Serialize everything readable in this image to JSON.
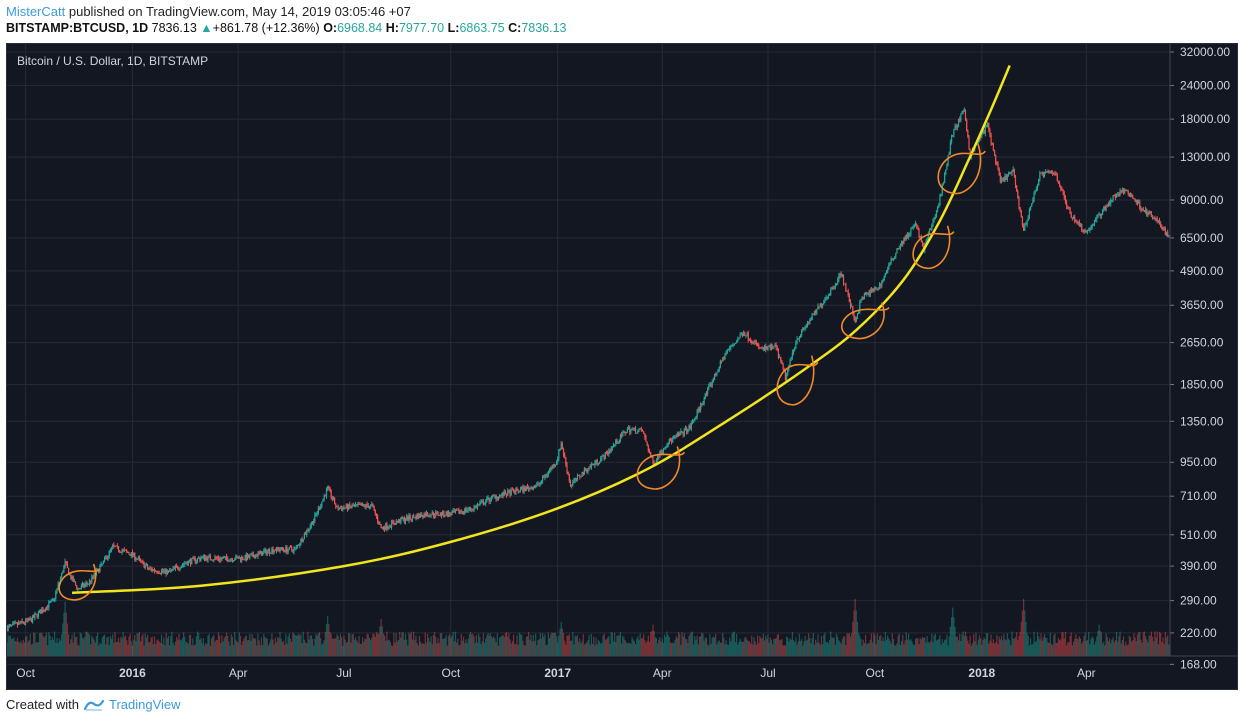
{
  "header": {
    "author": "MisterCatt",
    "published_text": "published on TradingView.com, May 14, 2019 03:05:46 +07",
    "symbol": "BITSTAMP:BTCUSD, 1D",
    "last": "7836.13",
    "change": "+861.78 (+12.36%)",
    "o_label": "O:",
    "o_value": "6968.84",
    "h_label": "H:",
    "h_value": "7977.70",
    "l_label": "L:",
    "l_value": "6863.75",
    "c_label": "C:",
    "c_value": "7836.13"
  },
  "footer": {
    "created_with": "Created with",
    "brand": "TradingView"
  },
  "colors": {
    "background": "#131722",
    "grid": "#262a35",
    "candle_up": "#26a69a",
    "candle_down": "#ef5350",
    "trend_curve": "#f2e51d",
    "annotation": "#f0892b",
    "axis_text": "#d1d4dc"
  },
  "chart_data": {
    "type": "candlestick",
    "title": "Bitcoin / U.S. Dollar, 1D, BITSTAMP",
    "y_scale": "log",
    "ylim": [
      200,
      32000
    ],
    "y_ticks": [
      32000,
      24000,
      18000,
      13000,
      9000,
      6500,
      4900,
      3650,
      2650,
      1850,
      1350,
      950,
      710,
      510,
      390,
      290,
      220,
      168
    ],
    "y_tick_labels": [
      "32000.00",
      "24000.00",
      "18000.00",
      "13000.00",
      "9000.00",
      "6500.00",
      "4900.00",
      "3650.00",
      "2650.00",
      "1850.00",
      "1350.00",
      "950.00",
      "710.00",
      "510.00",
      "390.00",
      "290.00",
      "220.00",
      "168.00"
    ],
    "x_range": [
      "2015-09-15",
      "2018-06-12"
    ],
    "x_ticks": [
      {
        "date": "2015-10-01",
        "label": "Oct",
        "bold": false
      },
      {
        "date": "2016-01-01",
        "label": "2016",
        "bold": true
      },
      {
        "date": "2016-04-01",
        "label": "Apr",
        "bold": false
      },
      {
        "date": "2016-07-01",
        "label": "Jul",
        "bold": false
      },
      {
        "date": "2016-10-01",
        "label": "Oct",
        "bold": false
      },
      {
        "date": "2017-01-01",
        "label": "2017",
        "bold": true
      },
      {
        "date": "2017-04-01",
        "label": "Apr",
        "bold": false
      },
      {
        "date": "2017-07-01",
        "label": "Jul",
        "bold": false
      },
      {
        "date": "2017-10-01",
        "label": "Oct",
        "bold": false
      },
      {
        "date": "2018-01-01",
        "label": "2018",
        "bold": true
      },
      {
        "date": "2018-04-01",
        "label": "Apr",
        "bold": false
      }
    ],
    "price_series": {
      "name": "BTCUSD close",
      "points": [
        [
          "2015-09-15",
          230
        ],
        [
          "2015-10-05",
          245
        ],
        [
          "2015-10-25",
          290
        ],
        [
          "2015-11-04",
          400
        ],
        [
          "2015-11-08",
          360
        ],
        [
          "2015-11-15",
          320
        ],
        [
          "2015-11-25",
          340
        ],
        [
          "2015-12-05",
          390
        ],
        [
          "2015-12-15",
          460
        ],
        [
          "2016-01-01",
          430
        ],
        [
          "2016-01-15",
          380
        ],
        [
          "2016-02-01",
          370
        ],
        [
          "2016-02-15",
          400
        ],
        [
          "2016-03-01",
          420
        ],
        [
          "2016-03-20",
          415
        ],
        [
          "2016-04-10",
          420
        ],
        [
          "2016-05-01",
          450
        ],
        [
          "2016-05-20",
          450
        ],
        [
          "2016-06-05",
          580
        ],
        [
          "2016-06-17",
          760
        ],
        [
          "2016-06-25",
          640
        ],
        [
          "2016-07-10",
          650
        ],
        [
          "2016-07-25",
          655
        ],
        [
          "2016-08-02",
          540
        ],
        [
          "2016-08-20",
          580
        ],
        [
          "2016-09-10",
          610
        ],
        [
          "2016-10-01",
          610
        ],
        [
          "2016-10-20",
          640
        ],
        [
          "2016-11-05",
          700
        ],
        [
          "2016-11-25",
          740
        ],
        [
          "2016-12-15",
          780
        ],
        [
          "2016-12-31",
          960
        ],
        [
          "2017-01-04",
          1120
        ],
        [
          "2017-01-12",
          780
        ],
        [
          "2017-01-25",
          890
        ],
        [
          "2017-02-10",
          1000
        ],
        [
          "2017-03-02",
          1260
        ],
        [
          "2017-03-15",
          1240
        ],
        [
          "2017-03-24",
          940
        ],
        [
          "2017-04-05",
          1120
        ],
        [
          "2017-04-25",
          1280
        ],
        [
          "2017-05-10",
          1750
        ],
        [
          "2017-05-25",
          2400
        ],
        [
          "2017-06-10",
          2900
        ],
        [
          "2017-06-25",
          2500
        ],
        [
          "2017-07-08",
          2550
        ],
        [
          "2017-07-16",
          1950
        ],
        [
          "2017-07-25",
          2700
        ],
        [
          "2017-08-10",
          3400
        ],
        [
          "2017-08-25",
          4200
        ],
        [
          "2017-09-02",
          4800
        ],
        [
          "2017-09-14",
          3200
        ],
        [
          "2017-09-20",
          3900
        ],
        [
          "2017-10-05",
          4300
        ],
        [
          "2017-10-20",
          5900
        ],
        [
          "2017-11-05",
          7300
        ],
        [
          "2017-11-12",
          5900
        ],
        [
          "2017-11-25",
          8700
        ],
        [
          "2017-12-07",
          16000
        ],
        [
          "2017-12-17",
          19400
        ],
        [
          "2017-12-22",
          13200
        ],
        [
          "2017-12-28",
          14800
        ],
        [
          "2018-01-06",
          17100
        ],
        [
          "2018-01-17",
          10500
        ],
        [
          "2018-01-28",
          11500
        ],
        [
          "2018-02-06",
          6900
        ],
        [
          "2018-02-20",
          11200
        ],
        [
          "2018-03-05",
          11400
        ],
        [
          "2018-03-18",
          8000
        ],
        [
          "2018-04-01",
          6800
        ],
        [
          "2018-04-12",
          7900
        ],
        [
          "2018-04-25",
          9300
        ],
        [
          "2018-05-05",
          9800
        ],
        [
          "2018-05-20",
          8300
        ],
        [
          "2018-06-01",
          7500
        ],
        [
          "2018-06-12",
          6500
        ]
      ]
    },
    "volume_series": {
      "name": "Volume",
      "relative_peaks": [
        [
          "2015-11-04",
          0.95
        ],
        [
          "2016-06-17",
          0.7
        ],
        [
          "2016-08-02",
          0.65
        ],
        [
          "2017-01-04",
          0.6
        ],
        [
          "2017-03-24",
          0.55
        ],
        [
          "2017-09-14",
          1.0
        ],
        [
          "2017-12-07",
          0.85
        ],
        [
          "2018-02-06",
          1.0
        ],
        [
          "2018-04-12",
          0.55
        ]
      ]
    },
    "trend_curve": {
      "name": "",
      "points": [
        [
          "2015-11-10",
          310
        ],
        [
          "2016-03-01",
          330
        ],
        [
          "2016-07-01",
          390
        ],
        [
          "2016-10-01",
          480
        ],
        [
          "2017-01-01",
          640
        ],
        [
          "2017-03-20",
          900
        ],
        [
          "2017-06-01",
          1400
        ],
        [
          "2017-08-01",
          2100
        ],
        [
          "2017-09-15",
          2950
        ],
        [
          "2017-10-25",
          4500
        ],
        [
          "2017-11-25",
          7400
        ],
        [
          "2017-12-20",
          12500
        ],
        [
          "2018-01-10",
          20000
        ],
        [
          "2018-01-25",
          28500
        ]
      ]
    },
    "annotation_circles": [
      {
        "date": "2015-11-14",
        "price": 335
      },
      {
        "date": "2017-03-28",
        "price": 890
      },
      {
        "date": "2017-07-24",
        "price": 1880
      },
      {
        "date": "2017-09-20",
        "price": 3150
      },
      {
        "date": "2017-11-18",
        "price": 5900
      },
      {
        "date": "2017-12-12",
        "price": 11500
      }
    ]
  }
}
